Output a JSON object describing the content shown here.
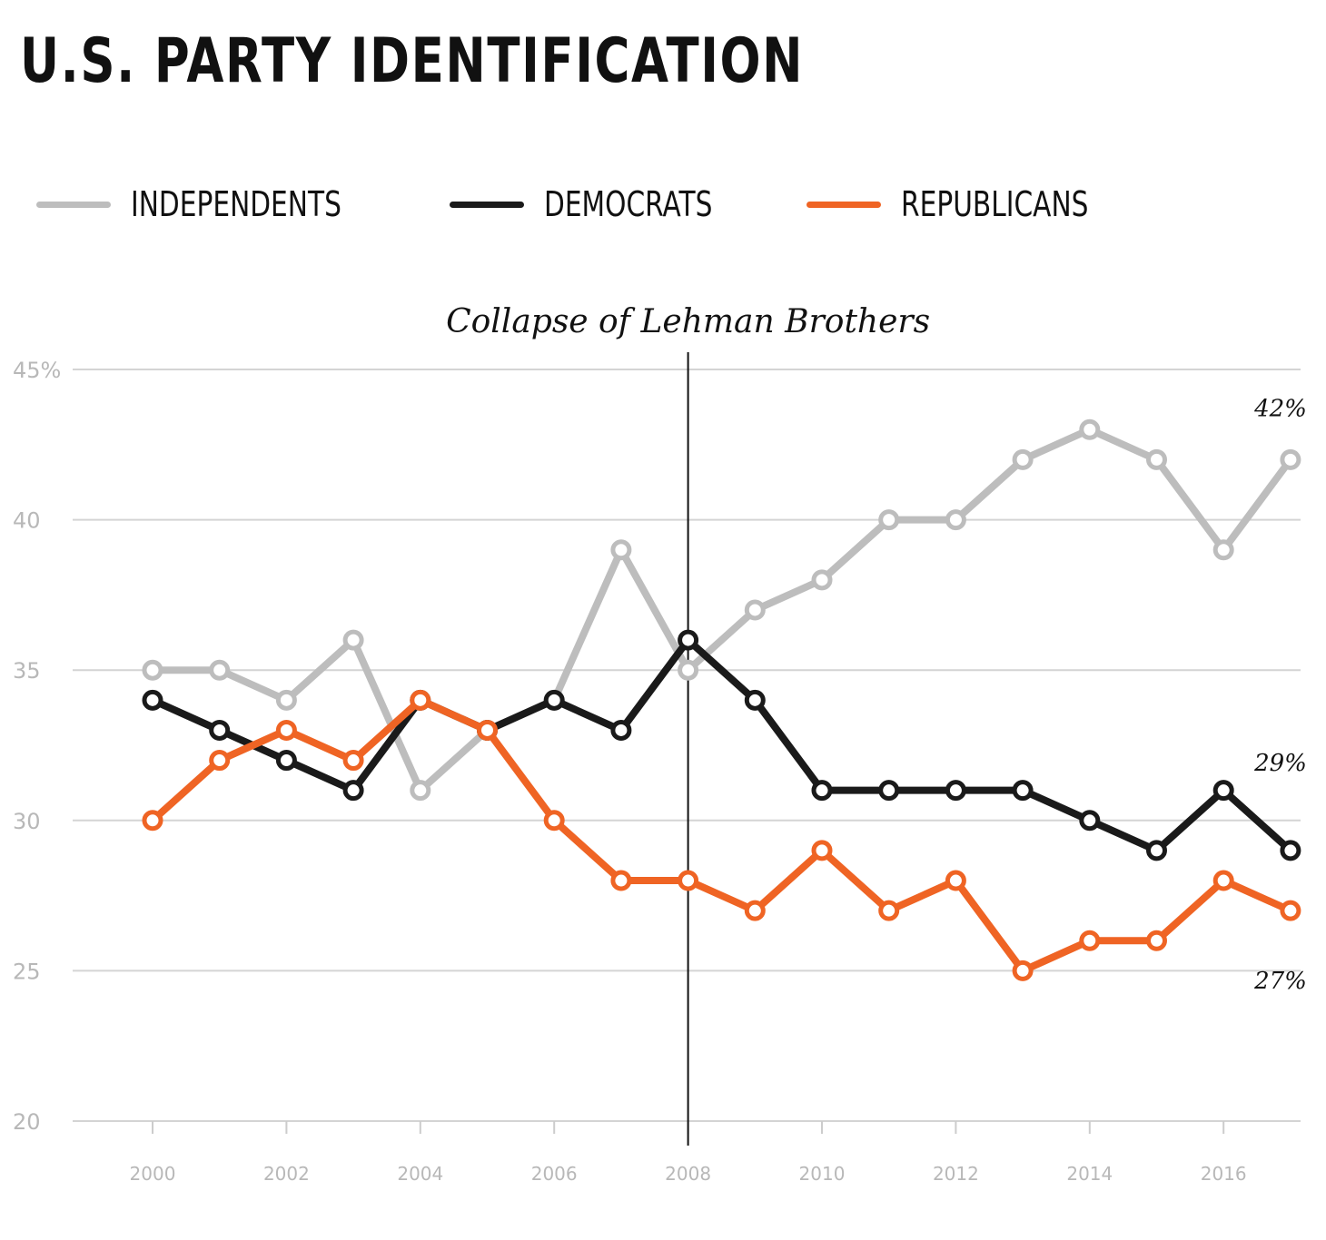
{
  "title": "U.S. PARTY IDENTIFICATION",
  "legend": [
    {
      "label": "INDEPENDENTS",
      "color": "#bdbdbd"
    },
    {
      "label": "DEMOCRATS",
      "color": "#1a1a1a"
    },
    {
      "label": "REPUBLICANS",
      "color": "#ef6424"
    }
  ],
  "chart_data": {
    "type": "line",
    "title": "U.S. PARTY IDENTIFICATION",
    "xlabel": "",
    "ylabel": "",
    "x": [
      2000,
      2001,
      2002,
      2003,
      2004,
      2005,
      2006,
      2007,
      2008,
      2009,
      2010,
      2011,
      2012,
      2013,
      2014,
      2015,
      2016,
      2017
    ],
    "xticks": [
      "2000",
      "2002",
      "2004",
      "2006",
      "2008",
      "2010",
      "2012",
      "2014",
      "2016"
    ],
    "yticks": [
      "45%",
      "40",
      "35",
      "30",
      "25",
      "20"
    ],
    "ylim": [
      20,
      45
    ],
    "grid": true,
    "legend_position": "top",
    "series": [
      {
        "name": "INDEPENDENTS",
        "color": "#bdbdbd",
        "values": [
          35,
          35,
          34,
          36,
          31,
          33,
          34,
          39,
          35,
          37,
          38,
          40,
          40,
          42,
          43,
          42,
          39,
          42
        ]
      },
      {
        "name": "DEMOCRATS",
        "color": "#1a1a1a",
        "values": [
          34,
          33,
          32,
          31,
          34,
          33,
          34,
          33,
          36,
          34,
          31,
          31,
          31,
          31,
          30,
          29,
          31,
          29
        ]
      },
      {
        "name": "REPUBLICANS",
        "color": "#ef6424",
        "values": [
          30,
          32,
          33,
          32,
          34,
          33,
          30,
          28,
          28,
          27,
          29,
          27,
          28,
          25,
          26,
          26,
          28,
          27
        ]
      }
    ],
    "annotations": [
      {
        "text": "Collapse of Lehman Brothers",
        "x": 2008
      },
      {
        "text": "42%",
        "series": "INDEPENDENTS"
      },
      {
        "text": "29%",
        "series": "DEMOCRATS"
      },
      {
        "text": "27%",
        "series": "REPUBLICANS"
      }
    ]
  }
}
